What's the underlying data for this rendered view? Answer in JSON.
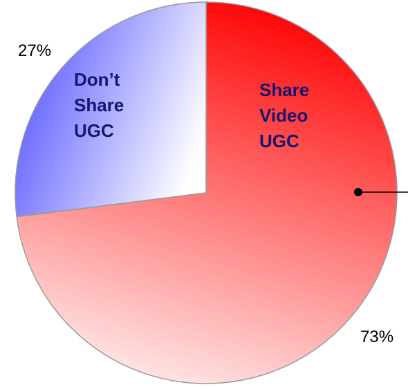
{
  "chart_data": {
    "type": "pie",
    "categories": [
      "Share Video UGC",
      "Don’t Share UGC"
    ],
    "values": [
      73,
      27
    ],
    "value_labels": [
      "73%",
      "27%"
    ],
    "colors": [
      "#ff0000",
      "#5050ff"
    ]
  }
}
